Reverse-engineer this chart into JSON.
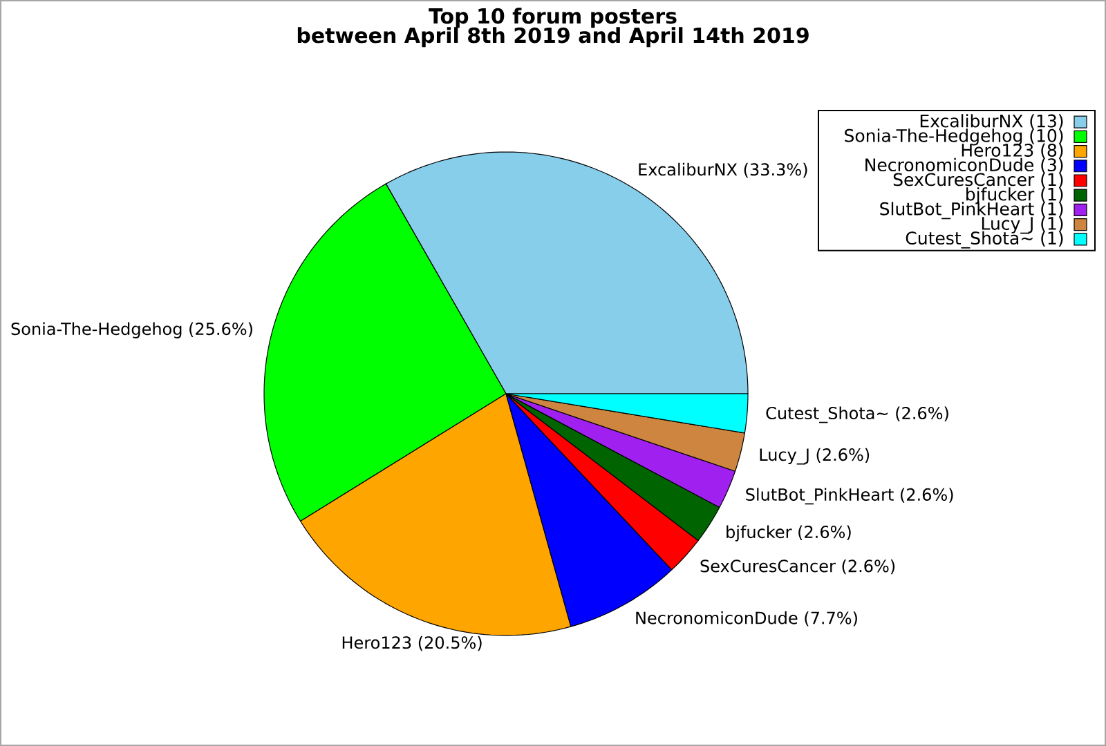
{
  "chart_data": {
    "type": "pie",
    "title": "Top 10 forum posters",
    "subtitle": "between April 8th 2019 and April 14th 2019",
    "categories": [
      "ExcaliburNX",
      "Sonia-The-Hedgehog",
      "Hero123",
      "NecronomiconDude",
      "SexCuresCancer",
      "bjfucker",
      "SlutBot_PinkHeart",
      "Lucy_J",
      "Cutest_Shota~"
    ],
    "values": [
      33.3,
      25.6,
      20.5,
      7.7,
      2.6,
      2.6,
      2.6,
      2.6,
      2.6
    ],
    "colors": [
      "#87ceeb",
      "#00ff00",
      "#ffa500",
      "#0000ff",
      "#ff0000",
      "#006400",
      "#a020f0",
      "#cd853f",
      "#00ffff"
    ],
    "value_labels": [
      "(33.3%)",
      "(25.6%)",
      "(20.5%)",
      "(7.7%)",
      "(2.6%)",
      "(2.6%)",
      "(2.6%)",
      "(2.6%)",
      "(2.6%)"
    ],
    "annotations": [
      "(13)",
      "(10)",
      "(8)",
      "(3)",
      "(1)",
      "(1)",
      "(1)",
      "(1)",
      "(1)"
    ],
    "legend": "top right"
  }
}
